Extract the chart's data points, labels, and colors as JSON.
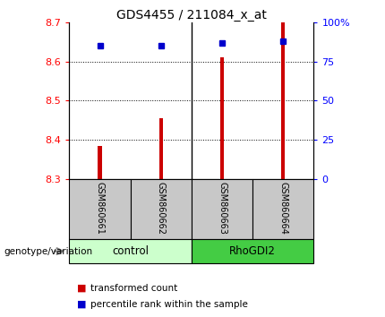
{
  "title": "GDS4455 / 211084_x_at",
  "samples": [
    "GSM860661",
    "GSM860662",
    "GSM860663",
    "GSM860664"
  ],
  "groups": [
    "control",
    "control",
    "RhoGDI2",
    "RhoGDI2"
  ],
  "bar_values": [
    8.385,
    8.455,
    8.61,
    8.7
  ],
  "bar_bottom": 8.3,
  "percentile_values": [
    85,
    85,
    87,
    88
  ],
  "ylim_left": [
    8.3,
    8.7
  ],
  "ylim_right": [
    0,
    100
  ],
  "yticks_left": [
    8.3,
    8.4,
    8.5,
    8.6,
    8.7
  ],
  "yticks_right": [
    0,
    25,
    50,
    75,
    100
  ],
  "ytick_labels_right": [
    "0",
    "25",
    "50",
    "75",
    "100%"
  ],
  "bar_color": "#CC0000",
  "dot_color": "#0000CC",
  "control_color": "#CCFFCC",
  "rhogdi2_color": "#44CC44",
  "group_label": "genotype/variation",
  "legend_bar": "transformed count",
  "legend_dot": "percentile rank within the sample",
  "bar_width": 0.06,
  "sample_area_bg": "#C8C8C8",
  "grid_lines": [
    8.4,
    8.5,
    8.6
  ],
  "figsize": [
    4.3,
    3.54
  ],
  "dpi": 100
}
